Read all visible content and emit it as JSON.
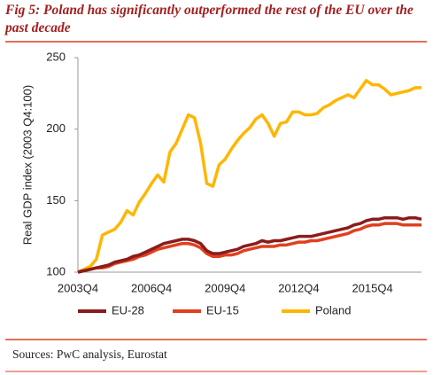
{
  "chart_data": {
    "type": "line",
    "title": "Fig 5: Poland has significantly outperformed the rest of the EU over the past decade",
    "y_label": "Real GDP index (2003 Q4:100)",
    "source": "Sources: PwC analysis, Eurostat",
    "categories": [
      "2003Q4",
      null,
      null,
      null,
      null,
      null,
      null,
      null,
      null,
      null,
      null,
      null,
      "2006Q4",
      null,
      null,
      null,
      null,
      null,
      null,
      null,
      null,
      null,
      null,
      null,
      "2009Q4",
      null,
      null,
      null,
      null,
      null,
      null,
      null,
      null,
      null,
      null,
      null,
      "2012Q4",
      null,
      null,
      null,
      null,
      null,
      null,
      null,
      null,
      null,
      null,
      null,
      "2015Q4",
      null,
      null,
      null,
      null,
      null,
      null,
      null,
      null
    ],
    "series": [
      {
        "name": "EU-28",
        "color": "#8b1c1c",
        "values": [
          100,
          101,
          102,
          103,
          104,
          105,
          107,
          108,
          109,
          111,
          112,
          114,
          116,
          118,
          120,
          121,
          122,
          123,
          123,
          122,
          120,
          115,
          113,
          113,
          114,
          115,
          116,
          118,
          119,
          120,
          122,
          121,
          122,
          122,
          123,
          124,
          125,
          125,
          125,
          126,
          127,
          128,
          129,
          130,
          131,
          133,
          134,
          136,
          137,
          137,
          138,
          138,
          138,
          137,
          138,
          138,
          137
        ]
      },
      {
        "name": "EU-15",
        "color": "#e0401e",
        "values": [
          100,
          101,
          102,
          103,
          103,
          104,
          106,
          107,
          108,
          109,
          111,
          112,
          114,
          116,
          117,
          118,
          119,
          120,
          120,
          119,
          117,
          113,
          111,
          111,
          112,
          112,
          113,
          115,
          116,
          117,
          118,
          118,
          118,
          119,
          119,
          120,
          121,
          121,
          122,
          122,
          123,
          124,
          125,
          126,
          127,
          129,
          130,
          132,
          133,
          133,
          134,
          134,
          134,
          133,
          133,
          133,
          133
        ]
      },
      {
        "name": "Poland",
        "color": "#ffb600",
        "values": [
          100,
          102,
          104,
          109,
          126,
          128,
          130,
          135,
          143,
          140,
          149,
          155,
          162,
          168,
          163,
          184,
          190,
          200,
          210,
          208,
          190,
          162,
          160,
          175,
          179,
          186,
          192,
          197,
          201,
          207,
          210,
          204,
          195,
          204,
          205,
          212,
          212,
          210,
          210,
          211,
          215,
          217,
          220,
          222,
          224,
          222,
          228,
          234,
          231,
          231,
          228,
          224,
          225,
          226,
          227,
          229,
          229
        ]
      }
    ],
    "ylim": [
      100,
      250
    ],
    "yticks": [
      100,
      150,
      200,
      250
    ],
    "grid": false,
    "legend": "bottom"
  }
}
